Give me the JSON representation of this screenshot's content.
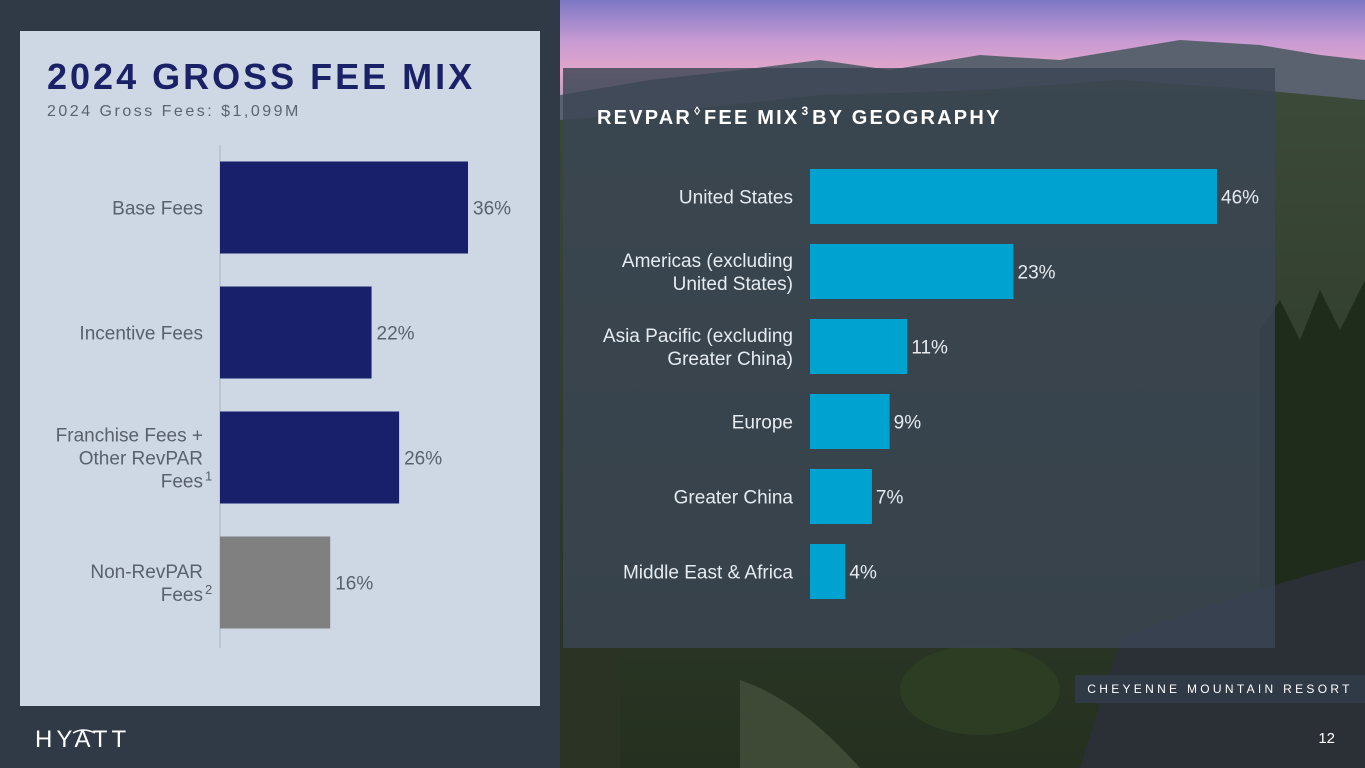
{
  "left": {
    "title": "2024 GROSS FEE MIX",
    "subtitle": "2024 Gross Fees: $1,099M"
  },
  "right": {
    "title_part1": "REVPAR",
    "title_sup1": "◊",
    "title_part2": "FEE MIX",
    "title_sup2": "3",
    "title_part3": "BY GEOGRAPHY"
  },
  "footer": {
    "brand": "HYATT",
    "resort_caption": "CHEYENNE MOUNTAIN RESORT",
    "page_number": "12"
  },
  "colors": {
    "navy_bar": "#181f6b",
    "gray_bar": "#808080",
    "cyan_bar": "#00a3d0"
  },
  "chart_data": [
    {
      "type": "bar",
      "orientation": "horizontal",
      "title": "2024 GROSS FEE MIX",
      "subtitle": "2024 Gross Fees: $1,099M",
      "categories": [
        "Base Fees",
        "Incentive Fees",
        "Franchise Fees + Other RevPAR Fees",
        "Non-RevPAR Fees"
      ],
      "category_lines": [
        [
          "Base Fees"
        ],
        [
          "Incentive Fees"
        ],
        [
          "Franchise Fees +",
          "Other RevPAR",
          "Fees"
        ],
        [
          "Non-RevPAR",
          "Fees"
        ]
      ],
      "category_footnotes": [
        "",
        "",
        "1",
        "2"
      ],
      "values": [
        36,
        22,
        26,
        16
      ],
      "labels": [
        "36%",
        "22%",
        "26%",
        "16%"
      ],
      "bar_colors": [
        "#181f6b",
        "#181f6b",
        "#181f6b",
        "#808080"
      ],
      "xlim": [
        0,
        36
      ]
    },
    {
      "type": "bar",
      "orientation": "horizontal",
      "title": "REVPAR◊ FEE MIX3 BY GEOGRAPHY",
      "categories": [
        "United States",
        "Americas (excluding United States)",
        "Asia Pacific (excluding Greater China)",
        "Europe",
        "Greater China",
        "Middle East & Africa"
      ],
      "category_lines": [
        [
          "United States"
        ],
        [
          "Americas (excluding",
          "United States)"
        ],
        [
          "Asia Pacific (excluding",
          "Greater China)"
        ],
        [
          "Europe"
        ],
        [
          "Greater China"
        ],
        [
          "Middle East & Africa"
        ]
      ],
      "values": [
        46,
        23,
        11,
        9,
        7,
        4
      ],
      "labels": [
        "46%",
        "23%",
        "11%",
        "9%",
        "7%",
        "4%"
      ],
      "bar_color": "#00a3d0",
      "xlim": [
        0,
        46
      ]
    }
  ]
}
